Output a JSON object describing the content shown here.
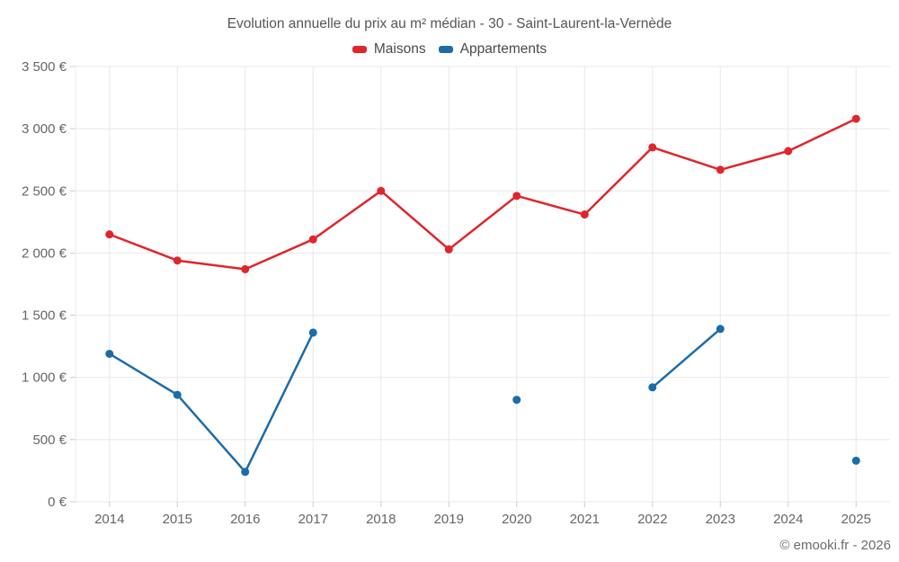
{
  "chart_data": {
    "type": "line",
    "title": "Evolution annuelle du prix au m² médian - 30 - Saint-Laurent-la-Vernède",
    "categories": [
      "2014",
      "2015",
      "2016",
      "2017",
      "2018",
      "2019",
      "2020",
      "2021",
      "2022",
      "2023",
      "2024",
      "2025"
    ],
    "series": [
      {
        "name": "Maisons",
        "color": "#e0252b",
        "values": [
          2150,
          1940,
          1870,
          2110,
          2500,
          2030,
          2460,
          2310,
          2850,
          2670,
          2820,
          3080
        ]
      },
      {
        "name": "Appartements",
        "color": "#1b6ca8",
        "values": [
          1190,
          860,
          240,
          1360,
          null,
          null,
          820,
          null,
          920,
          1390,
          null,
          330
        ]
      }
    ],
    "ylim": [
      0,
      3500
    ],
    "y_tick_step": 500,
    "y_tick_suffix": " €",
    "grid": true,
    "legend_position": "top"
  },
  "footer": {
    "credit": "© emooki.fr - 2026"
  }
}
